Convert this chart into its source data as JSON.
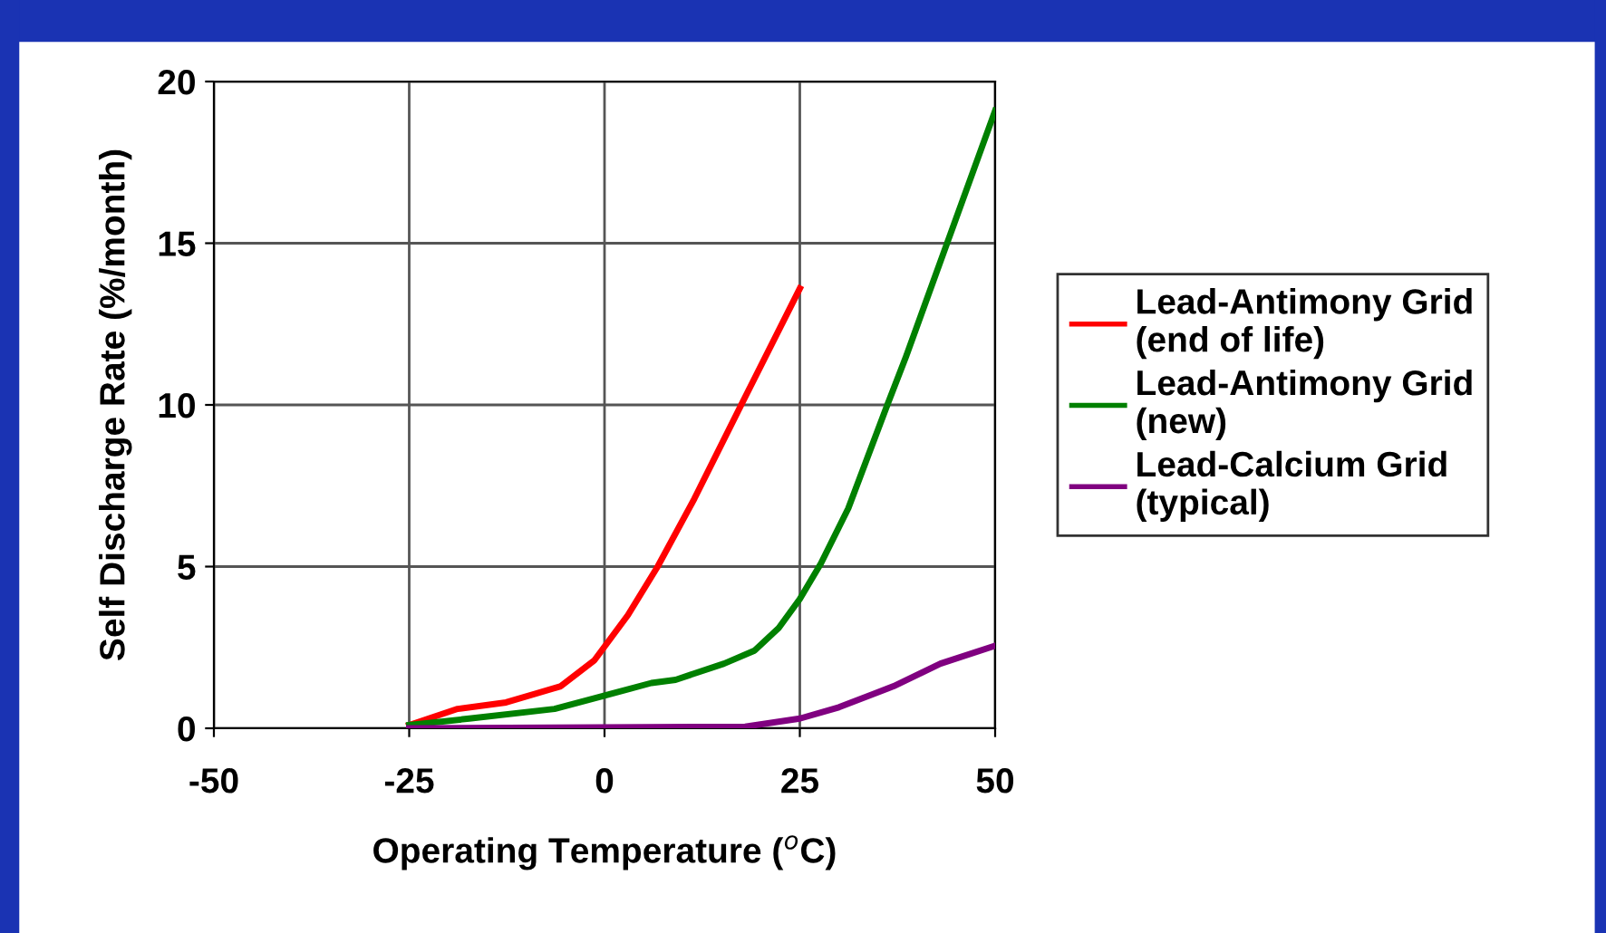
{
  "chart_data": {
    "type": "line",
    "xlabel": "Operating Temperature ($^{o}$C)",
    "ylabel": "Self Discharge Rate (%/month)",
    "xlim": [
      -50,
      50
    ],
    "xticks": [
      -50,
      -25,
      0,
      25,
      50
    ],
    "ylim": [
      0,
      20
    ],
    "yticks": [
      0,
      5,
      10,
      15,
      20
    ],
    "grid": true,
    "legend": "right",
    "line_style": "solid",
    "series": [
      {
        "name": "Lead-Antimony Grid\n(end of life)",
        "color": "#ff0000",
        "x": [
          -25,
          -18.8,
          -12.6,
          -5.6,
          -1.3,
          3,
          6.8,
          11.5,
          17.7,
          25
        ],
        "values": [
          0.1,
          0.6,
          0.8,
          1.3,
          2.1,
          3.5,
          5.0,
          7.1,
          10.1,
          13.6
        ]
      },
      {
        "name": "Lead-Antimony Grid\n(new)",
        "color": "#008000",
        "x": [
          -25,
          -17.3,
          -6.4,
          -0.2,
          6,
          9.1,
          15.3,
          19.2,
          22.3,
          25,
          27.7,
          31.2,
          36.2,
          38.6,
          44,
          50
        ],
        "values": [
          0.1,
          0.3,
          0.6,
          1.0,
          1.4,
          1.5,
          2.0,
          2.4,
          3.1,
          4.0,
          5.1,
          6.8,
          10.0,
          11.5,
          15.1,
          19.1
        ]
      },
      {
        "name": "Lead-Calcium Grid\n(typical)",
        "color": "#800080",
        "x": [
          -25,
          18,
          25,
          30,
          37,
          43,
          50
        ],
        "values": [
          0,
          0.05,
          0.3,
          0.65,
          1.3,
          2.0,
          2.55
        ]
      }
    ]
  }
}
